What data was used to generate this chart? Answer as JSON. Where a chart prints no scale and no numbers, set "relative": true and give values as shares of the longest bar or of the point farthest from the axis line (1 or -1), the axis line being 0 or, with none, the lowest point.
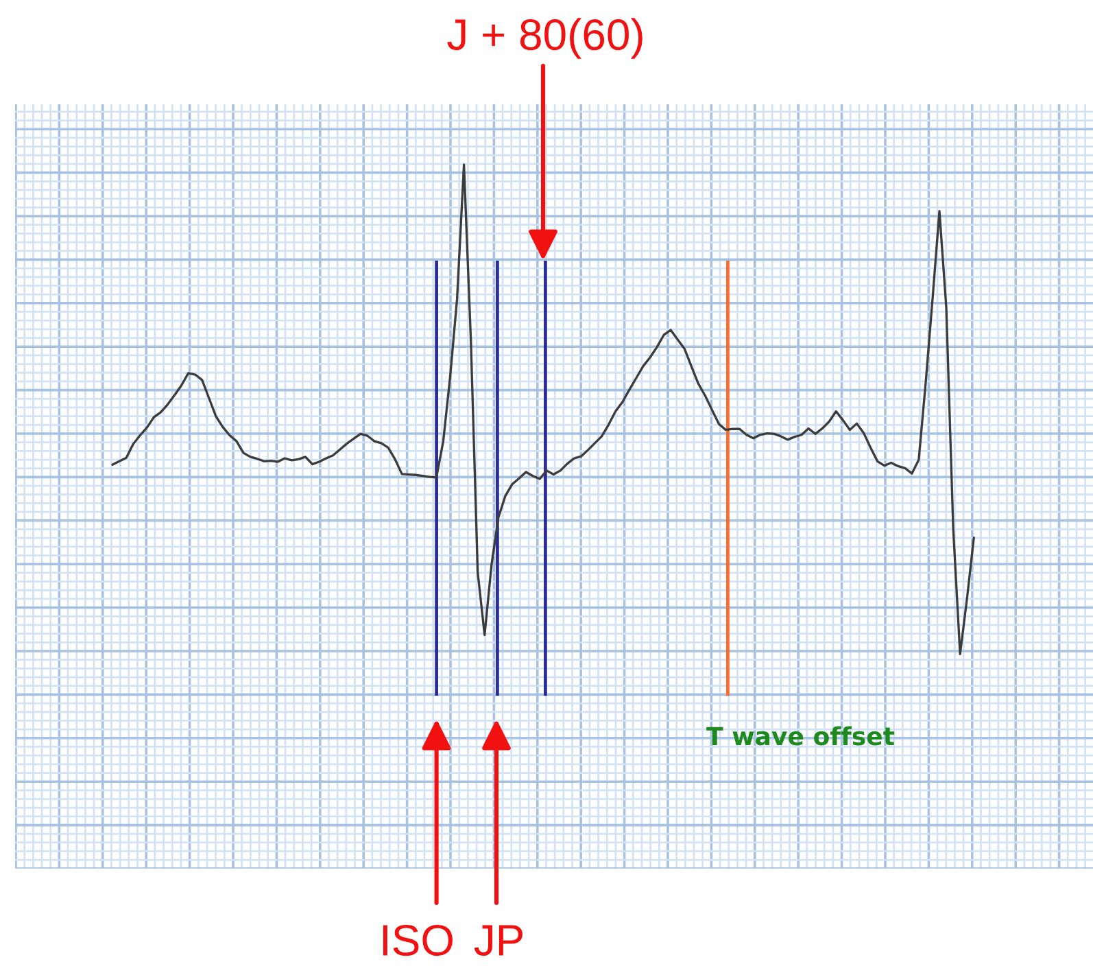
{
  "chart_data": {
    "type": "line",
    "relative": true,
    "grid": true,
    "categories": [
      null,
      null,
      null,
      null,
      null,
      null,
      null,
      null,
      null,
      null,
      null,
      null,
      null,
      null,
      null,
      null,
      null,
      null,
      null,
      null,
      null,
      null,
      null,
      null,
      null,
      null,
      null,
      null,
      null,
      null,
      null,
      null,
      null,
      null,
      null,
      null,
      null,
      null,
      null,
      null,
      null,
      null,
      null,
      null,
      null,
      null,
      null,
      null,
      null,
      null,
      null,
      null,
      null,
      null,
      null,
      null,
      null,
      null,
      null,
      null,
      null,
      null,
      null,
      null,
      null,
      null,
      null,
      null,
      null,
      null,
      null,
      null,
      null,
      null,
      null,
      null,
      null,
      null,
      null,
      null,
      null,
      null,
      null,
      null,
      null,
      null,
      null,
      null,
      null,
      null,
      null,
      null,
      null,
      null,
      null,
      null,
      null,
      null,
      null,
      null,
      null,
      null,
      null,
      null,
      null,
      null,
      null,
      null,
      null,
      null,
      null,
      null,
      null,
      null,
      null,
      null,
      null,
      null,
      null,
      null,
      null,
      null,
      null,
      null,
      null,
      null
    ],
    "series": [
      {
        "color": "#3c3c3c",
        "values": [
          0.387,
          0.394,
          0.401,
          0.429,
          0.447,
          0.463,
          0.484,
          0.494,
          0.51,
          0.529,
          0.549,
          0.574,
          0.571,
          0.56,
          0.523,
          0.486,
          0.464,
          0.447,
          0.435,
          0.411,
          0.403,
          0.399,
          0.394,
          0.395,
          0.393,
          0.4,
          0.396,
          0.398,
          0.403,
          0.388,
          0.393,
          0.4,
          0.406,
          0.418,
          0.43,
          0.44,
          0.45,
          0.446,
          0.435,
          0.431,
          0.422,
          0.398,
          0.368,
          0.367,
          0.366,
          0.364,
          0.362,
          0.361,
          0.435,
          0.567,
          0.725,
          1.0,
          0.643,
          0.167,
          0.039,
          0.182,
          0.279,
          0.323,
          0.347,
          0.359,
          0.372,
          0.364,
          0.358,
          0.375,
          0.367,
          0.375,
          0.389,
          0.4,
          0.404,
          0.417,
          0.431,
          0.445,
          0.469,
          0.496,
          0.515,
          0.54,
          0.564,
          0.588,
          0.606,
          0.627,
          0.652,
          0.662,
          0.643,
          0.624,
          0.588,
          0.553,
          0.528,
          0.499,
          0.47,
          0.458,
          0.46,
          0.46,
          0.448,
          0.441,
          0.448,
          0.451,
          0.45,
          0.445,
          0.438,
          0.444,
          0.448,
          0.461,
          0.45,
          0.461,
          0.475,
          0.496,
          0.478,
          0.458,
          0.471,
          0.452,
          0.422,
          0.394,
          0.385,
          0.391,
          0.384,
          0.38,
          0.369,
          0.397,
          0.553,
          0.725,
          0.905,
          0.707,
          0.257,
          0.0,
          0.113,
          0.238
        ]
      }
    ],
    "annotations": [
      "J + 80(60)",
      "ISO",
      "JP",
      "T wave offset"
    ]
  }
}
